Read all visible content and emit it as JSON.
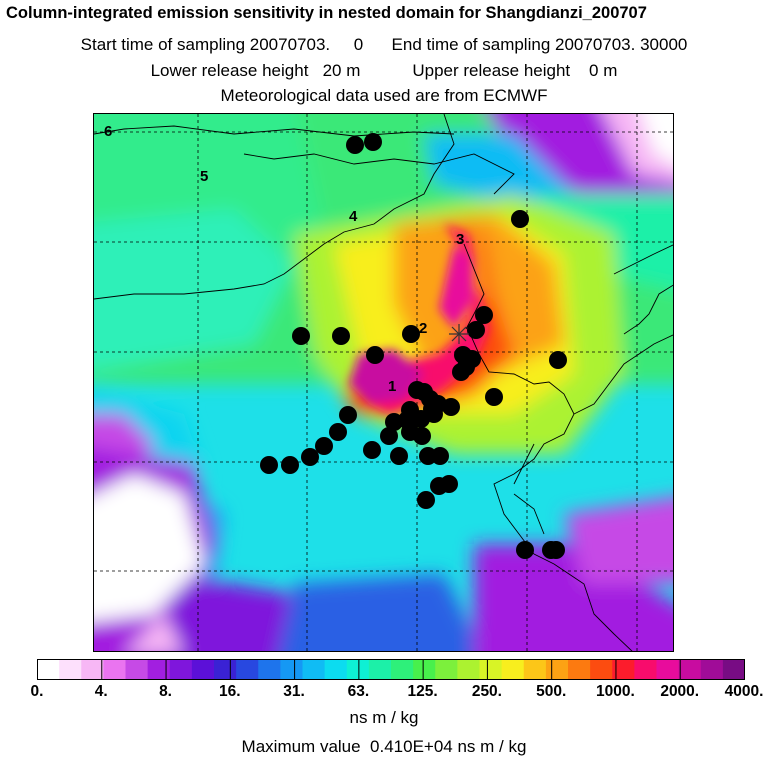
{
  "header": {
    "title": "Column-integrated emission sensitivity in nested domain for Shangdianzi_200707",
    "line2": "Start time of sampling 20070703.     0      End time of sampling 20070703. 30000",
    "line3": "Lower release height   20 m           Upper release height    0 m",
    "line4": "Meteorological data used are from ECMWF"
  },
  "map": {
    "trajectory_labels": [
      "1",
      "2",
      "3",
      "4",
      "5",
      "6"
    ],
    "station_marker": "cross-icon",
    "cluster_marker": "filled-circle"
  },
  "legend": {
    "ticks": [
      "0.",
      "4.",
      "8.",
      "16.",
      "31.",
      "63.",
      "125.",
      "250.",
      "500.",
      "1000.",
      "2000.",
      "4000."
    ],
    "colors": [
      "#ffffff",
      "#fde0fc",
      "#f7b7f5",
      "#ea74f0",
      "#c64ae6",
      "#a21fe0",
      "#7f16dc",
      "#5c10d8",
      "#3a22d4",
      "#2848e0",
      "#1e74ec",
      "#1598f4",
      "#10bcf4",
      "#0cdcf0",
      "#0ef0d4",
      "#1cf0a8",
      "#2ef07a",
      "#48f04c",
      "#7cf03c",
      "#acf230",
      "#d8f426",
      "#f8ee1e",
      "#fcc618",
      "#fca214",
      "#fc7a10",
      "#fc4c10",
      "#fc1c2c",
      "#f80c6c",
      "#e80c9c",
      "#c80ca0",
      "#a00c98",
      "#780c84"
    ],
    "unit": "ns m / kg",
    "max_value": "Maximum value  0.410E+04 ns m / kg"
  }
}
